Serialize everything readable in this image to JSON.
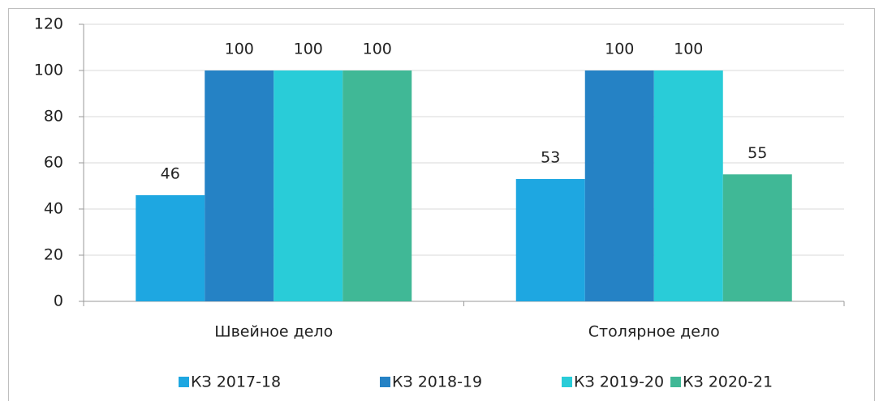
{
  "chart_data": {
    "type": "bar",
    "categories": [
      "Швейное дело",
      "Столярное дело"
    ],
    "series": [
      {
        "name": "КЗ 2017-18",
        "color": "#1ea7e1",
        "values": [
          46,
          53
        ]
      },
      {
        "name": "КЗ 2018-19",
        "color": "#2582c5",
        "values": [
          100,
          100
        ]
      },
      {
        "name": "КЗ 2019-20",
        "color": "#29ccd8",
        "values": [
          100,
          100
        ]
      },
      {
        "name": "КЗ 2020-21",
        "color": "#40b896",
        "values": [
          100,
          55
        ]
      }
    ],
    "ylim": [
      0,
      120
    ],
    "yticks": [
      0,
      20,
      40,
      60,
      80,
      100,
      120
    ],
    "grid": true,
    "legend": "bottom"
  }
}
